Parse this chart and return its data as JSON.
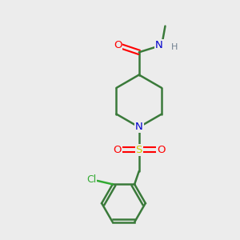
{
  "background_color": "#ececec",
  "bond_color": "#3a7a3a",
  "atom_colors": {
    "O": "#ff0000",
    "N": "#0000cd",
    "S": "#cccc00",
    "Cl": "#33aa33",
    "H": "#708090",
    "C": "#3a7a3a"
  },
  "figsize": [
    3.0,
    3.0
  ],
  "dpi": 100
}
